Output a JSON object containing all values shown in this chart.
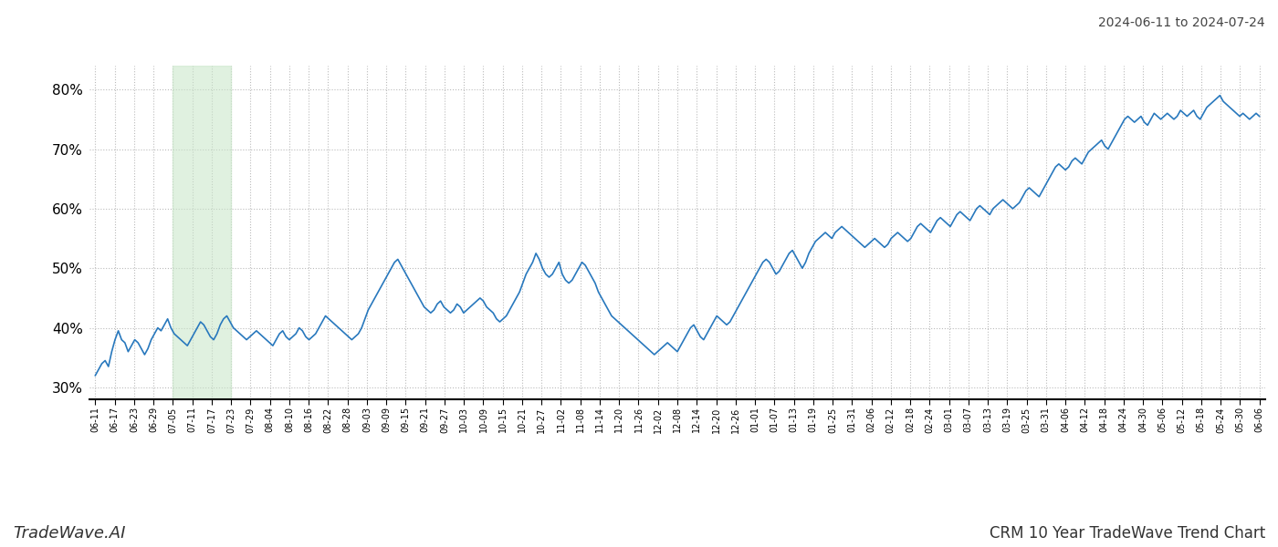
{
  "title_top_right": "2024-06-11 to 2024-07-24",
  "title_bottom_right": "CRM 10 Year TradeWave Trend Chart",
  "title_bottom_left": "TradeWave.AI",
  "line_color": "#2878bd",
  "line_width": 1.2,
  "highlight_color": "#c8e6c8",
  "highlight_alpha": 0.55,
  "highlight_x_start_label": "07-05",
  "highlight_x_end_label": "07-23",
  "ylim": [
    28,
    84
  ],
  "yticks": [
    30,
    40,
    50,
    60,
    70,
    80
  ],
  "background_color": "#ffffff",
  "grid_color": "#bbbbbb",
  "grid_style": ":",
  "x_labels": [
    "06-11",
    "06-17",
    "06-23",
    "06-29",
    "07-05",
    "07-11",
    "07-17",
    "07-23",
    "07-29",
    "08-04",
    "08-10",
    "08-16",
    "08-22",
    "08-28",
    "09-03",
    "09-09",
    "09-15",
    "09-21",
    "09-27",
    "10-03",
    "10-09",
    "10-15",
    "10-21",
    "10-27",
    "11-02",
    "11-08",
    "11-14",
    "11-20",
    "11-26",
    "12-02",
    "12-08",
    "12-14",
    "12-20",
    "12-26",
    "01-01",
    "01-07",
    "01-13",
    "01-19",
    "01-25",
    "01-31",
    "02-06",
    "02-12",
    "02-18",
    "02-24",
    "03-01",
    "03-07",
    "03-13",
    "03-19",
    "03-25",
    "03-31",
    "04-06",
    "04-12",
    "04-18",
    "04-24",
    "04-30",
    "05-06",
    "05-12",
    "05-18",
    "05-24",
    "05-30",
    "06-06"
  ],
  "values": [
    32.0,
    33.0,
    34.0,
    34.5,
    33.5,
    36.0,
    38.0,
    39.5,
    38.0,
    37.5,
    36.0,
    37.0,
    38.0,
    37.5,
    36.5,
    35.5,
    36.5,
    38.0,
    39.0,
    40.0,
    39.5,
    40.5,
    41.5,
    40.0,
    39.0,
    38.5,
    38.0,
    37.5,
    37.0,
    38.0,
    39.0,
    40.0,
    41.0,
    40.5,
    39.5,
    38.5,
    38.0,
    39.0,
    40.5,
    41.5,
    42.0,
    41.0,
    40.0,
    39.5,
    39.0,
    38.5,
    38.0,
    38.5,
    39.0,
    39.5,
    39.0,
    38.5,
    38.0,
    37.5,
    37.0,
    38.0,
    39.0,
    39.5,
    38.5,
    38.0,
    38.5,
    39.0,
    40.0,
    39.5,
    38.5,
    38.0,
    38.5,
    39.0,
    40.0,
    41.0,
    42.0,
    41.5,
    41.0,
    40.5,
    40.0,
    39.5,
    39.0,
    38.5,
    38.0,
    38.5,
    39.0,
    40.0,
    41.5,
    43.0,
    44.0,
    45.0,
    46.0,
    47.0,
    48.0,
    49.0,
    50.0,
    51.0,
    51.5,
    50.5,
    49.5,
    48.5,
    47.5,
    46.5,
    45.5,
    44.5,
    43.5,
    43.0,
    42.5,
    43.0,
    44.0,
    44.5,
    43.5,
    43.0,
    42.5,
    43.0,
    44.0,
    43.5,
    42.5,
    43.0,
    43.5,
    44.0,
    44.5,
    45.0,
    44.5,
    43.5,
    43.0,
    42.5,
    41.5,
    41.0,
    41.5,
    42.0,
    43.0,
    44.0,
    45.0,
    46.0,
    47.5,
    49.0,
    50.0,
    51.0,
    52.5,
    51.5,
    50.0,
    49.0,
    48.5,
    49.0,
    50.0,
    51.0,
    49.0,
    48.0,
    47.5,
    48.0,
    49.0,
    50.0,
    51.0,
    50.5,
    49.5,
    48.5,
    47.5,
    46.0,
    45.0,
    44.0,
    43.0,
    42.0,
    41.5,
    41.0,
    40.5,
    40.0,
    39.5,
    39.0,
    38.5,
    38.0,
    37.5,
    37.0,
    36.5,
    36.0,
    35.5,
    36.0,
    36.5,
    37.0,
    37.5,
    37.0,
    36.5,
    36.0,
    37.0,
    38.0,
    39.0,
    40.0,
    40.5,
    39.5,
    38.5,
    38.0,
    39.0,
    40.0,
    41.0,
    42.0,
    41.5,
    41.0,
    40.5,
    41.0,
    42.0,
    43.0,
    44.0,
    45.0,
    46.0,
    47.0,
    48.0,
    49.0,
    50.0,
    51.0,
    51.5,
    51.0,
    50.0,
    49.0,
    49.5,
    50.5,
    51.5,
    52.5,
    53.0,
    52.0,
    51.0,
    50.0,
    51.0,
    52.5,
    53.5,
    54.5,
    55.0,
    55.5,
    56.0,
    55.5,
    55.0,
    56.0,
    56.5,
    57.0,
    56.5,
    56.0,
    55.5,
    55.0,
    54.5,
    54.0,
    53.5,
    54.0,
    54.5,
    55.0,
    54.5,
    54.0,
    53.5,
    54.0,
    55.0,
    55.5,
    56.0,
    55.5,
    55.0,
    54.5,
    55.0,
    56.0,
    57.0,
    57.5,
    57.0,
    56.5,
    56.0,
    57.0,
    58.0,
    58.5,
    58.0,
    57.5,
    57.0,
    58.0,
    59.0,
    59.5,
    59.0,
    58.5,
    58.0,
    59.0,
    60.0,
    60.5,
    60.0,
    59.5,
    59.0,
    60.0,
    60.5,
    61.0,
    61.5,
    61.0,
    60.5,
    60.0,
    60.5,
    61.0,
    62.0,
    63.0,
    63.5,
    63.0,
    62.5,
    62.0,
    63.0,
    64.0,
    65.0,
    66.0,
    67.0,
    67.5,
    67.0,
    66.5,
    67.0,
    68.0,
    68.5,
    68.0,
    67.5,
    68.5,
    69.5,
    70.0,
    70.5,
    71.0,
    71.5,
    70.5,
    70.0,
    71.0,
    72.0,
    73.0,
    74.0,
    75.0,
    75.5,
    75.0,
    74.5,
    75.0,
    75.5,
    74.5,
    74.0,
    75.0,
    76.0,
    75.5,
    75.0,
    75.5,
    76.0,
    75.5,
    75.0,
    75.5,
    76.5,
    76.0,
    75.5,
    76.0,
    76.5,
    75.5,
    75.0,
    76.0,
    77.0,
    77.5,
    78.0,
    78.5,
    79.0,
    78.0,
    77.5,
    77.0,
    76.5,
    76.0,
    75.5,
    76.0,
    75.5,
    75.0,
    75.5,
    76.0,
    75.5
  ]
}
